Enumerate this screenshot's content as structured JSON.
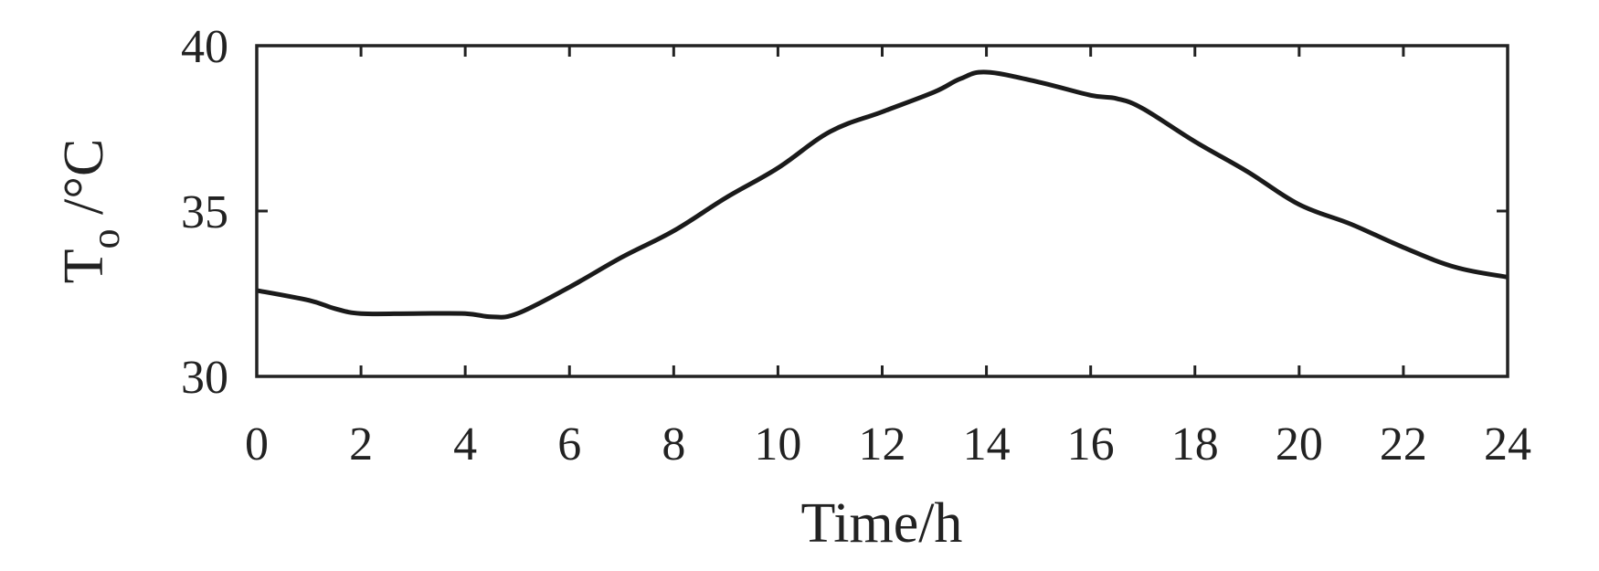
{
  "chart_data": {
    "type": "line",
    "title": "",
    "xlabel": "Time/h",
    "ylabel": {
      "main": "T",
      "sub": "o",
      "unit": " /°C"
    },
    "xlim": [
      0,
      24
    ],
    "ylim": [
      30,
      40
    ],
    "xticks": [
      "0",
      "2",
      "4",
      "6",
      "8",
      "10",
      "12",
      "14",
      "16",
      "18",
      "20",
      "22",
      "24"
    ],
    "yticks": [
      "30",
      "35",
      "40"
    ],
    "grid": false,
    "series": [
      {
        "color": "#1a1a1a",
        "x": [
          0,
          1,
          1.5,
          2,
          3,
          4,
          4.5,
          5,
          6,
          7,
          8,
          9,
          10,
          11,
          12,
          13,
          13.5,
          14,
          15,
          16,
          16.5,
          17,
          18,
          19,
          20,
          21,
          22,
          23,
          24
        ],
        "y": [
          32.6,
          32.3,
          32.05,
          31.9,
          31.9,
          31.9,
          31.8,
          31.9,
          32.7,
          33.6,
          34.4,
          35.4,
          36.3,
          37.4,
          38.0,
          38.6,
          39.0,
          39.2,
          38.9,
          38.5,
          38.4,
          38.1,
          37.1,
          36.2,
          35.2,
          34.6,
          33.9,
          33.3,
          33.0
        ]
      }
    ]
  }
}
